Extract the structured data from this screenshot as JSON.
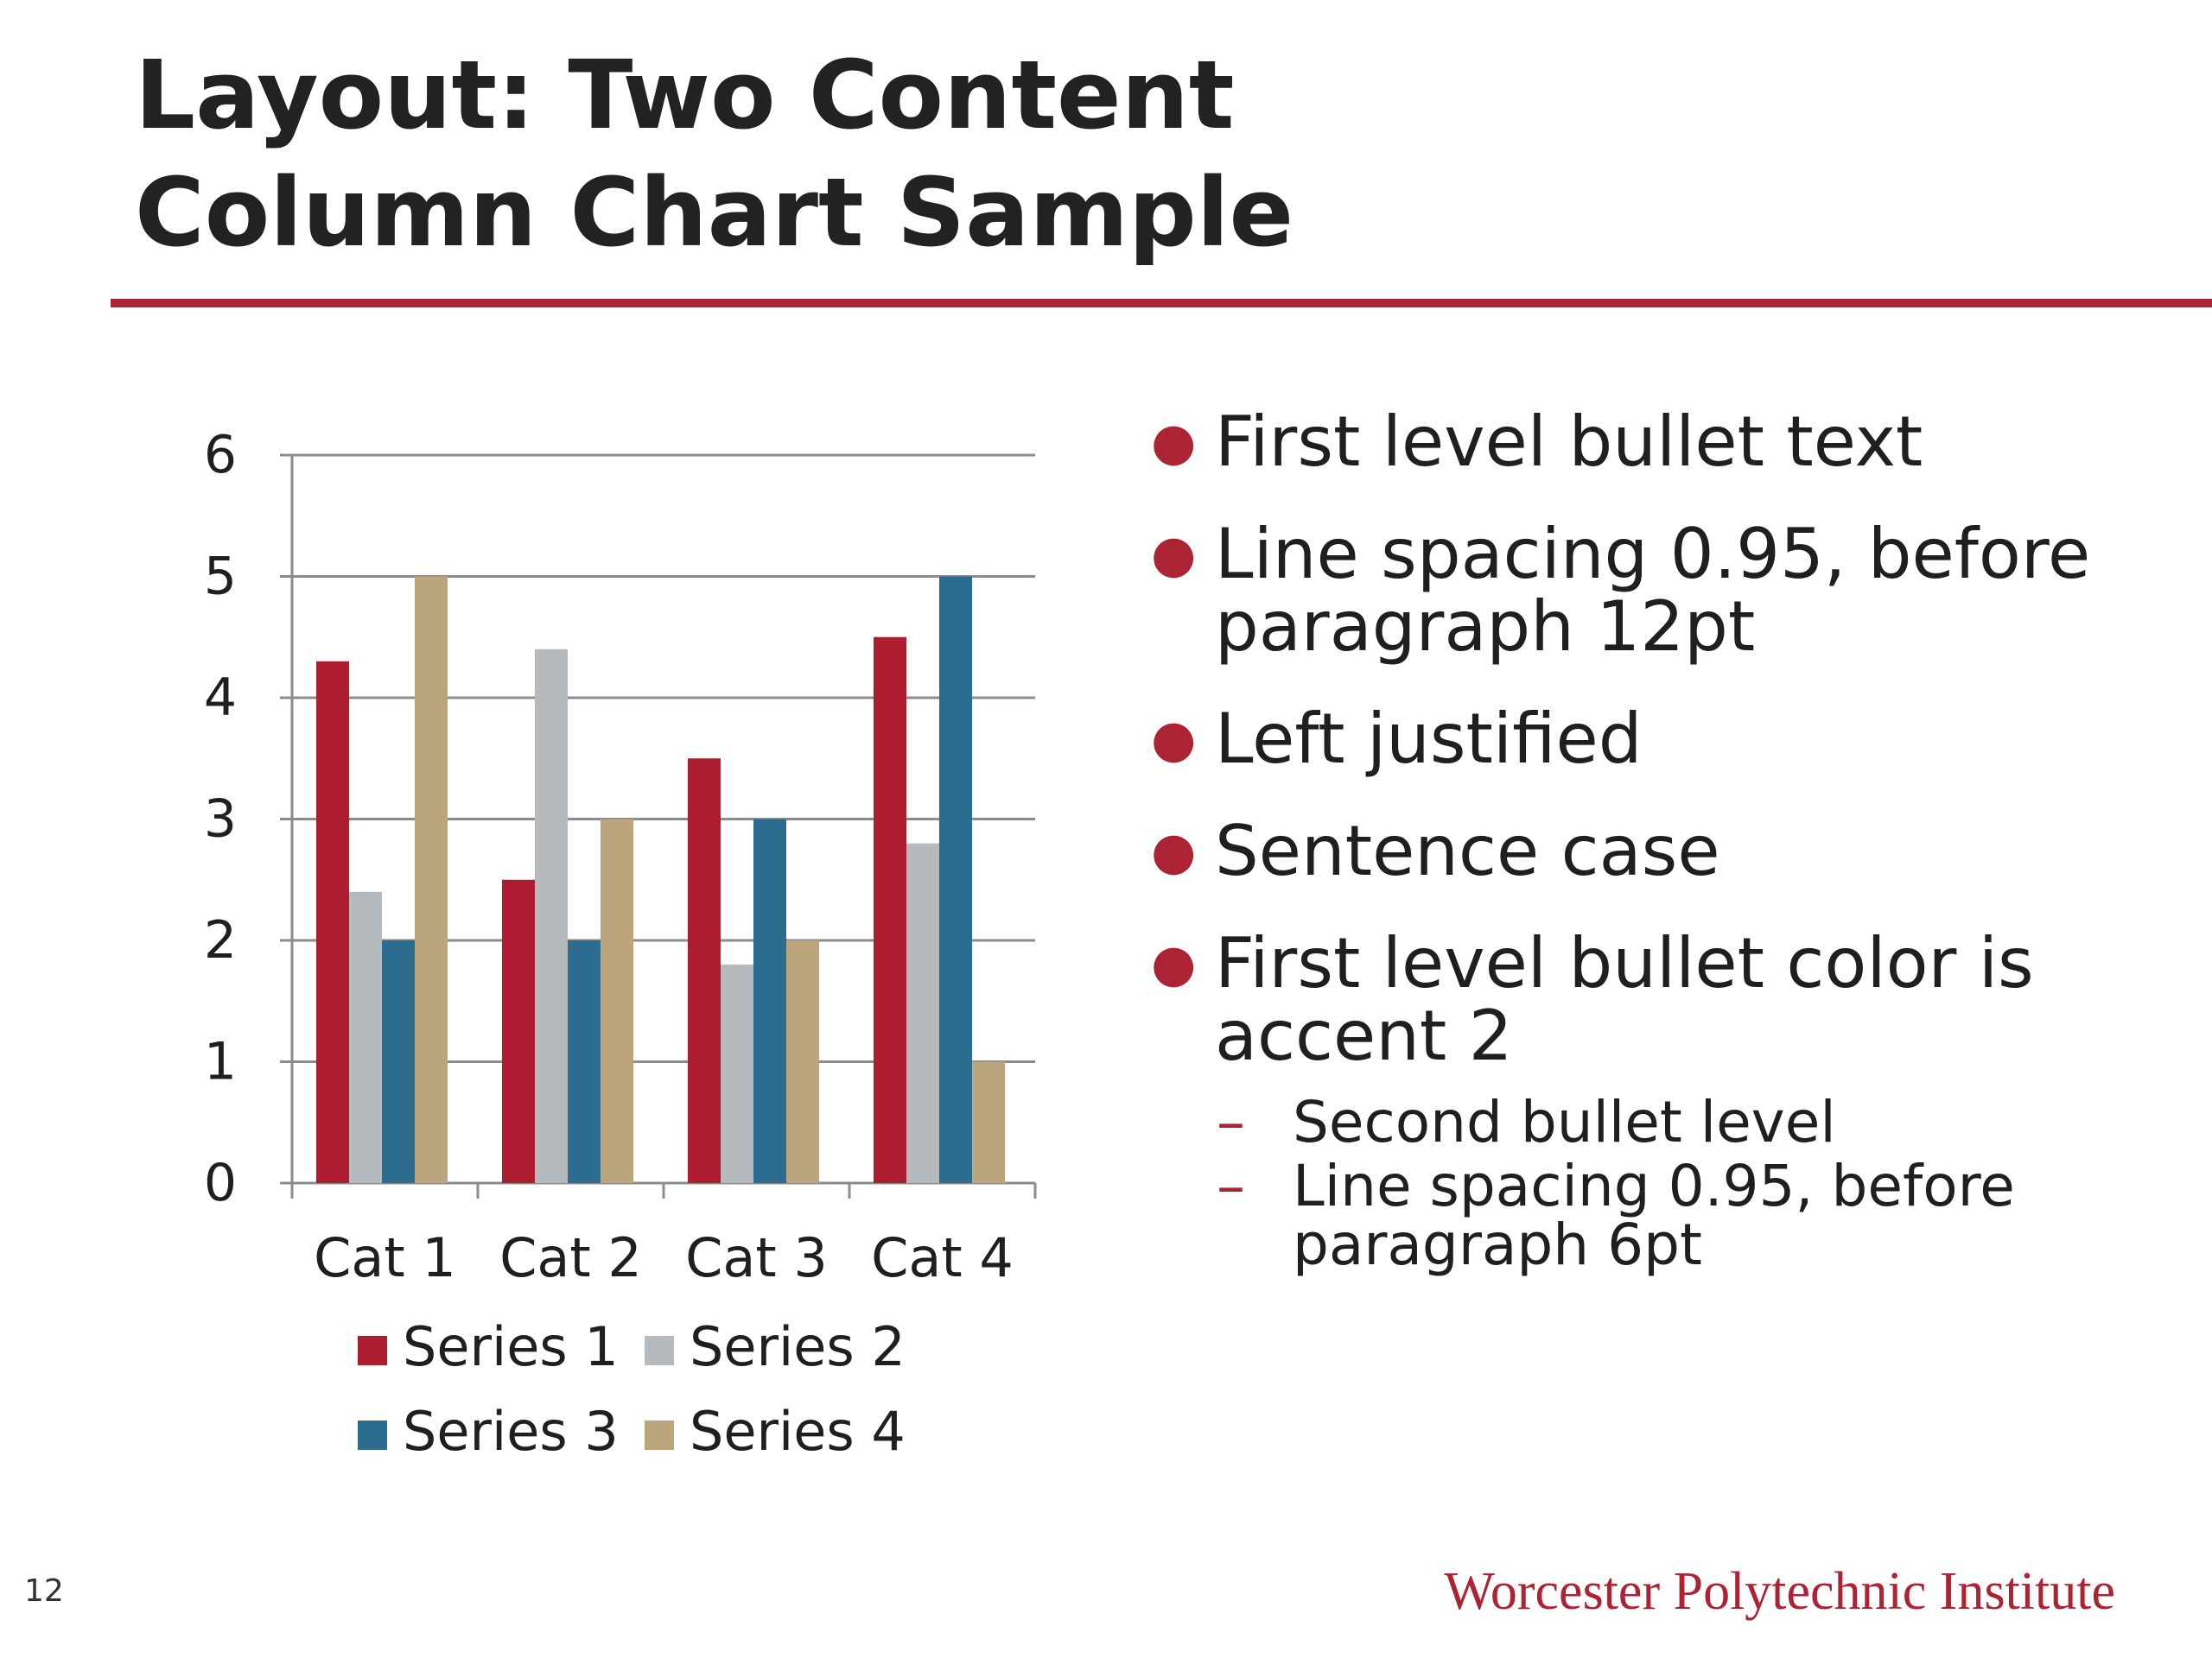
{
  "slide": {
    "title_line1": "Layout: Two Content",
    "title_line2": "Column Chart Sample",
    "page_number": "12",
    "footer_brand": "Worcester Polytechnic Institute",
    "accent_color": "#ac2333"
  },
  "bullets": [
    {
      "level": 1,
      "text": "First level bullet text"
    },
    {
      "level": 1,
      "text": "Line spacing 0.95, before paragraph 12pt"
    },
    {
      "level": 1,
      "text": "Left justified"
    },
    {
      "level": 1,
      "text": "Sentence case"
    },
    {
      "level": 1,
      "text": "First level bullet color is accent 2"
    },
    {
      "level": 2,
      "text": "Second bullet level"
    },
    {
      "level": 2,
      "text": "Line spacing 0.95, before paragraph 6pt"
    }
  ],
  "chart_data": {
    "type": "bar",
    "categories": [
      "Cat 1",
      "Cat 2",
      "Cat 3",
      "Cat 4"
    ],
    "series": [
      {
        "name": "Series 1",
        "color": "#ac1d2f",
        "values": [
          4.3,
          2.5,
          3.5,
          4.5
        ]
      },
      {
        "name": "Series 2",
        "color": "#b5babe",
        "values": [
          2.4,
          4.4,
          1.8,
          2.8
        ]
      },
      {
        "name": "Series 3",
        "color": "#2c6c8e",
        "values": [
          2,
          2,
          3,
          5
        ]
      },
      {
        "name": "Series 4",
        "color": "#bca47d",
        "values": [
          5,
          3,
          2,
          1
        ]
      }
    ],
    "ylim": [
      0,
      6
    ],
    "yticks": [
      "0",
      "1",
      "2",
      "3",
      "4",
      "5",
      "6"
    ],
    "grid": true,
    "legend_position": "bottom",
    "title": "",
    "xlabel": "",
    "ylabel": ""
  }
}
